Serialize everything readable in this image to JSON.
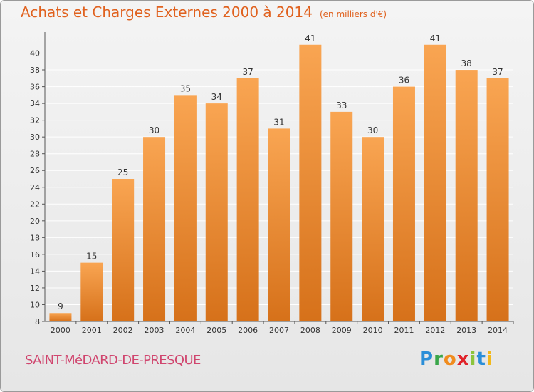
{
  "header": {
    "title": "Achats et Charges Externes 2000 à 2014",
    "subtitle": "(en milliers d'€)"
  },
  "footer": {
    "city": "SAINT-MéDARD-DE-PRESQUE",
    "logo_text": "Proxiti"
  },
  "colors": {
    "bar_top": "#f9a552",
    "bar_bottom": "#d6711a",
    "title": "#e0611e",
    "city": "#d0456e",
    "grid": "#ffffff",
    "axis": "#555555"
  },
  "chart_data": {
    "type": "bar",
    "title": "Achats et Charges Externes 2000 à 2014",
    "subtitle": "(en milliers d'€)",
    "categories": [
      "2000",
      "2001",
      "2002",
      "2003",
      "2004",
      "2005",
      "2006",
      "2007",
      "2008",
      "2009",
      "2010",
      "2011",
      "2012",
      "2013",
      "2014"
    ],
    "values": [
      9,
      15,
      25,
      30,
      35,
      34,
      37,
      31,
      41,
      33,
      30,
      36,
      41,
      38,
      37
    ],
    "data_labels": [
      "9",
      "15",
      "25",
      "30",
      "35",
      "34",
      "37",
      "31",
      "41",
      "33",
      "30",
      "36",
      "41",
      "38",
      "37"
    ],
    "ylim": [
      8,
      42
    ],
    "yticks": [
      8,
      10,
      12,
      14,
      16,
      18,
      20,
      22,
      24,
      26,
      28,
      30,
      32,
      34,
      36,
      38,
      40
    ],
    "xlabel": "",
    "ylabel": "",
    "grid": true,
    "legend": "none"
  }
}
